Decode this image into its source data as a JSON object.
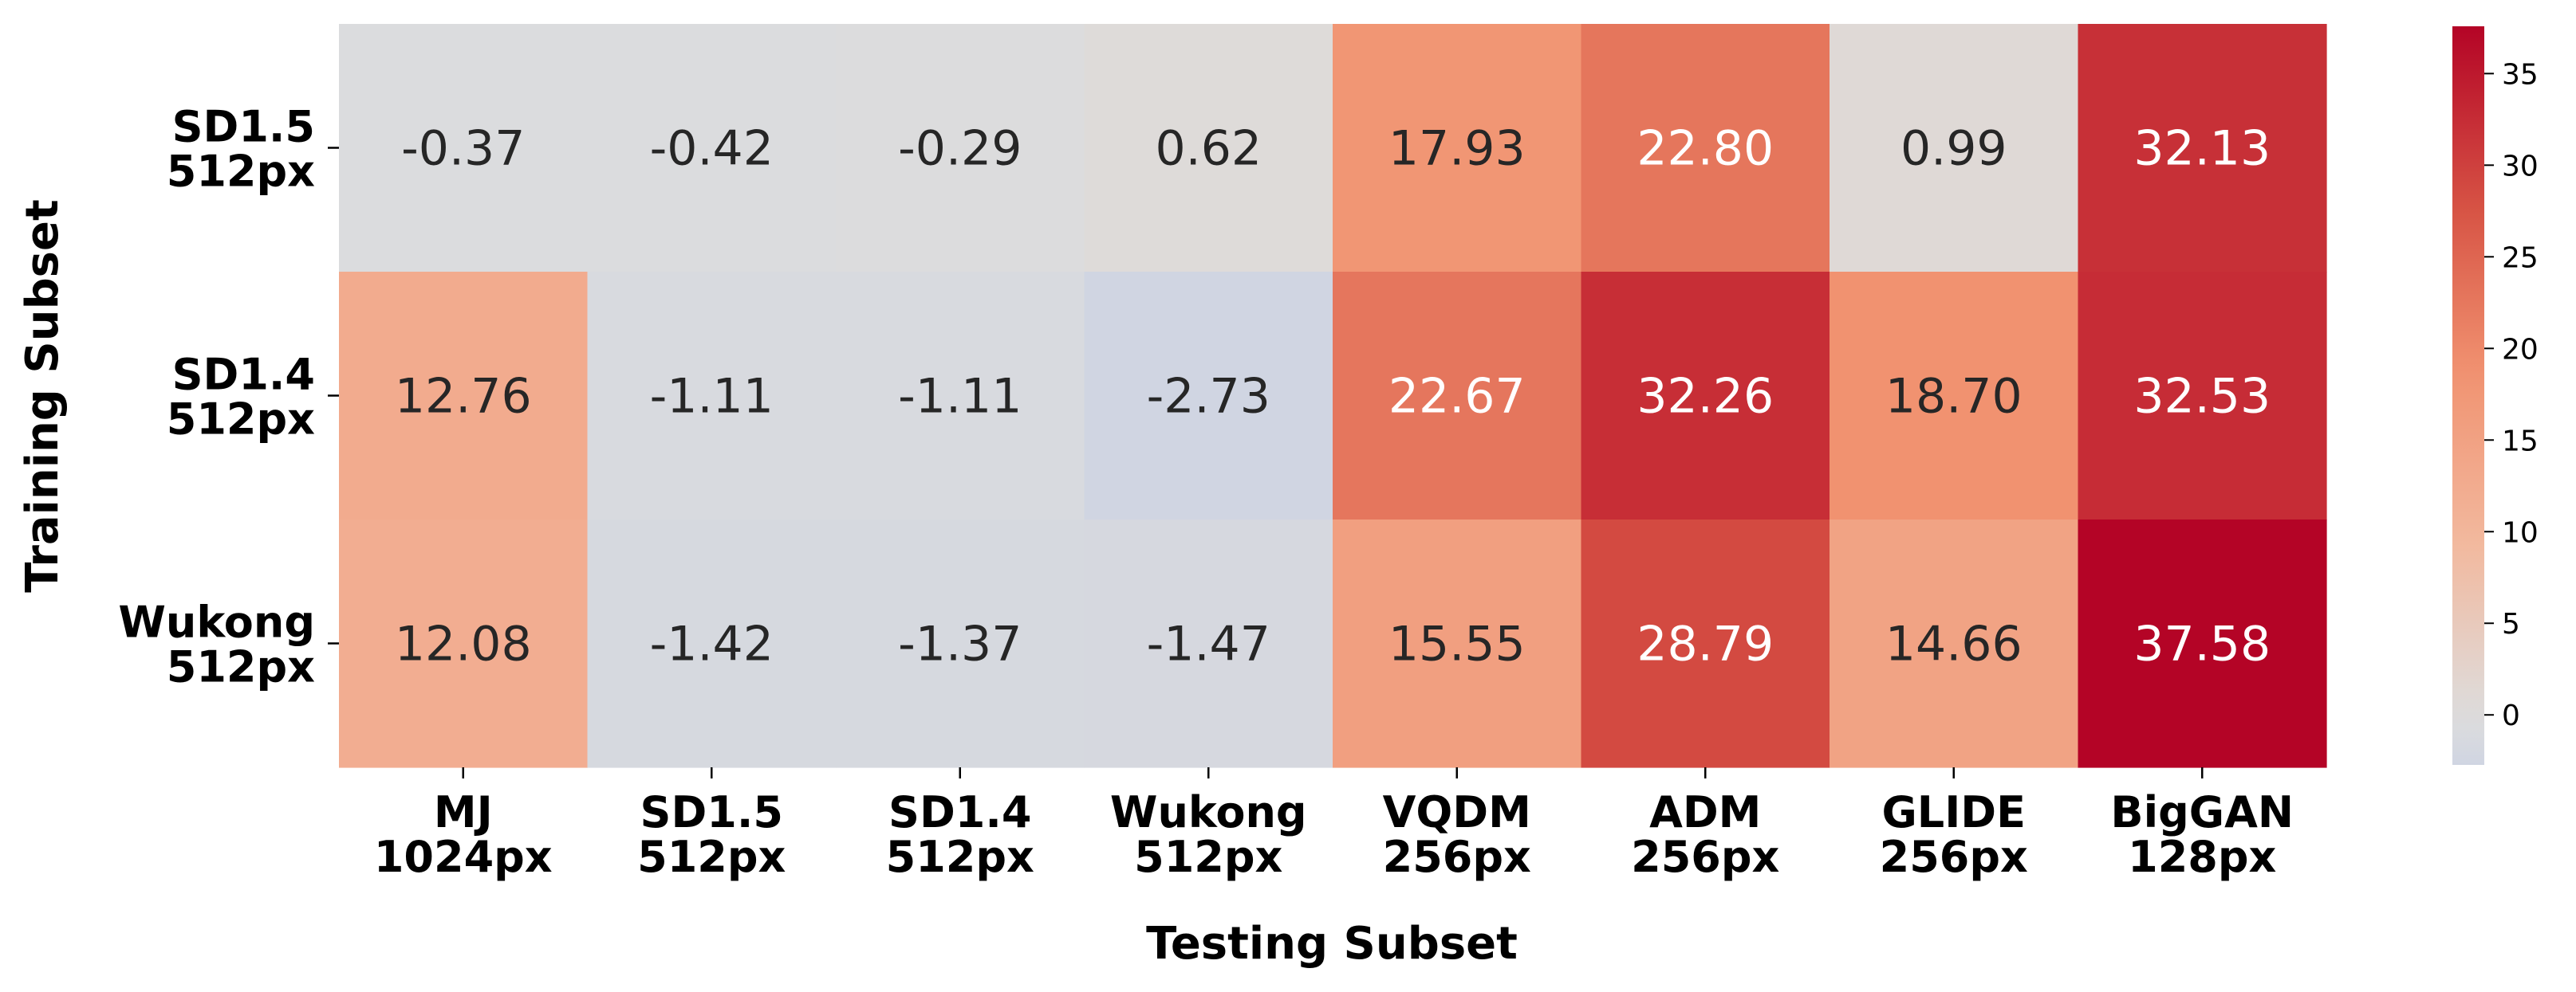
{
  "chart_data": {
    "type": "heatmap",
    "title": "",
    "xlabel": "Testing Subset",
    "ylabel": "Training Subset",
    "x_categories": [
      [
        "MJ",
        "1024px"
      ],
      [
        "SD1.5",
        "512px"
      ],
      [
        "SD1.4",
        "512px"
      ],
      [
        "Wukong",
        "512px"
      ],
      [
        "VQDM",
        "256px"
      ],
      [
        "ADM",
        "256px"
      ],
      [
        "GLIDE",
        "256px"
      ],
      [
        "BigGAN",
        "128px"
      ]
    ],
    "y_categories": [
      [
        "SD1.5",
        "512px"
      ],
      [
        "SD1.4",
        "512px"
      ],
      [
        "Wukong",
        "512px"
      ]
    ],
    "values": [
      [
        "-0.37",
        "-0.42",
        "-0.29",
        "0.62",
        "17.93",
        "22.80",
        "0.99",
        "32.13"
      ],
      [
        "12.76",
        "-1.11",
        "-1.11",
        "-2.73",
        "22.67",
        "32.26",
        "18.70",
        "32.53"
      ],
      [
        "12.08",
        "-1.42",
        "-1.37",
        "-1.47",
        "15.55",
        "28.79",
        "14.66",
        "37.58"
      ]
    ],
    "colormap": "coolwarm (center 0)",
    "colorbar": {
      "range": [
        -2.73,
        37.58
      ],
      "ticks": [
        "0",
        "5",
        "10",
        "15",
        "20",
        "25",
        "30",
        "35"
      ]
    }
  }
}
